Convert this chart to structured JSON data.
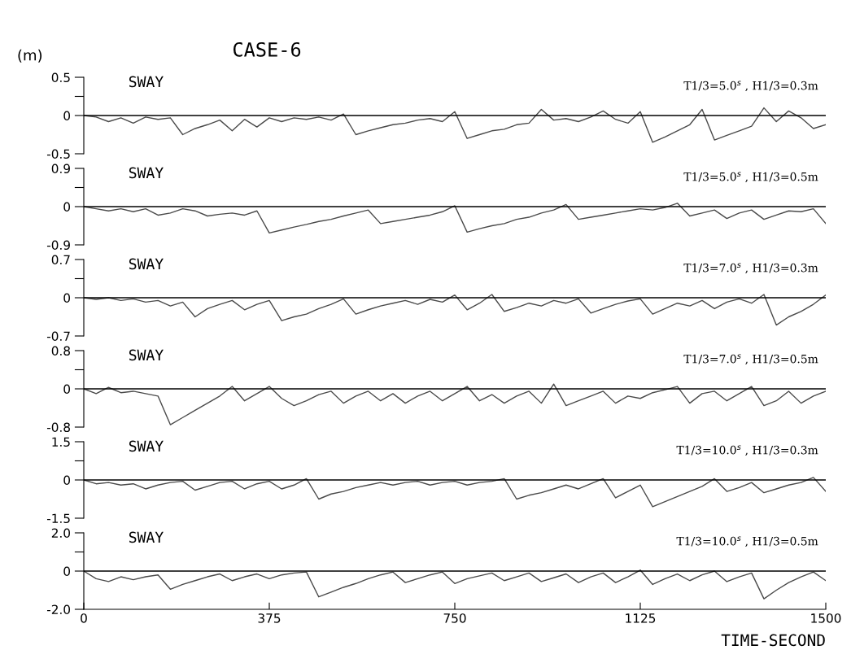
{
  "chart_data": [
    {
      "type": "line",
      "title": "SWAY",
      "ylabel": "(m)",
      "annotations": [
        "T1/3=5.0$^{s}$ , H1/3=0.3m",
        "CASE-6"
      ],
      "xlim": [
        0,
        1500
      ],
      "ylim": [
        -0.5,
        0.5
      ],
      "yticks": [
        {
          "value": -0.5,
          "label": "-0.5"
        },
        0,
        {
          "value": 0.25,
          "label": null
        },
        0.5
      ],
      "tick_labels": "y",
      "ref_lines": [
        {
          "axis": "y",
          "value": 0,
          "color": "#000000"
        }
      ],
      "series": [
        {
          "color": "#4a4a4a",
          "x": [
            0,
            25,
            50,
            75,
            100,
            125,
            150,
            175,
            200,
            225,
            250,
            275,
            300,
            325,
            350,
            375,
            400,
            425,
            450,
            475,
            500,
            525,
            550,
            575,
            600,
            625,
            650,
            675,
            700,
            725,
            750,
            775,
            800,
            825,
            850,
            875,
            900,
            925,
            950,
            975,
            1000,
            1025,
            1050,
            1075,
            1100,
            1125,
            1150,
            1175,
            1200,
            1225,
            1250,
            1275,
            1300,
            1325,
            1350,
            1375,
            1400,
            1425,
            1450,
            1475,
            1500
          ],
          "values": [
            0,
            -0.02,
            -0.08,
            -0.03,
            -0.1,
            -0.02,
            -0.05,
            -0.03,
            -0.25,
            -0.17,
            -0.12,
            -0.06,
            -0.2,
            -0.05,
            -0.15,
            -0.03,
            -0.08,
            -0.03,
            -0.05,
            -0.02,
            -0.06,
            0.02,
            -0.25,
            -0.2,
            -0.16,
            -0.12,
            -0.1,
            -0.06,
            -0.04,
            -0.08,
            0.05,
            -0.3,
            -0.25,
            -0.2,
            -0.18,
            -0.12,
            -0.1,
            0.08,
            -0.06,
            -0.04,
            -0.08,
            -0.02,
            0.06,
            -0.05,
            -0.1,
            0.05,
            -0.35,
            -0.28,
            -0.2,
            -0.12,
            0.08,
            -0.32,
            -0.26,
            -0.2,
            -0.14,
            0.1,
            -0.08,
            0.06,
            -0.03,
            -0.17,
            -0.12
          ]
        }
      ]
    },
    {
      "type": "line",
      "title": "SWAY",
      "annotations": [
        "T1/3=5.0$^{s}$ , H1/3=0.5m"
      ],
      "xlim": [
        0,
        1500
      ],
      "ylim": [
        -0.9,
        0.9
      ],
      "yticks": [
        {
          "value": -0.9,
          "label": "-0.9"
        },
        0,
        {
          "value": 0.45,
          "label": null
        },
        0.9
      ],
      "tick_labels": "y",
      "ref_lines": [
        {
          "axis": "y",
          "value": 0,
          "color": "#000000"
        }
      ],
      "series": [
        {
          "color": "#4a4a4a",
          "x": [
            0,
            25,
            50,
            75,
            100,
            125,
            150,
            175,
            200,
            225,
            250,
            275,
            300,
            325,
            350,
            375,
            400,
            425,
            450,
            475,
            500,
            525,
            550,
            575,
            600,
            625,
            650,
            675,
            700,
            725,
            750,
            775,
            800,
            825,
            850,
            875,
            900,
            925,
            950,
            975,
            1000,
            1025,
            1050,
            1075,
            1100,
            1125,
            1150,
            1175,
            1200,
            1225,
            1250,
            1275,
            1300,
            1325,
            1350,
            1375,
            1400,
            1425,
            1450,
            1475,
            1500
          ],
          "values": [
            0,
            -0.05,
            -0.1,
            -0.05,
            -0.12,
            -0.05,
            -0.2,
            -0.15,
            -0.05,
            -0.1,
            -0.22,
            -0.18,
            -0.15,
            -0.2,
            -0.1,
            -0.62,
            -0.55,
            -0.48,
            -0.42,
            -0.35,
            -0.3,
            -0.22,
            -0.15,
            -0.08,
            -0.4,
            -0.35,
            -0.3,
            -0.25,
            -0.2,
            -0.12,
            0.02,
            -0.6,
            -0.52,
            -0.45,
            -0.4,
            -0.3,
            -0.25,
            -0.15,
            -0.08,
            0.05,
            -0.3,
            -0.25,
            -0.2,
            -0.15,
            -0.1,
            -0.05,
            -0.08,
            -0.02,
            0.08,
            -0.22,
            -0.15,
            -0.08,
            -0.28,
            -0.15,
            -0.08,
            -0.3,
            -0.2,
            -0.1,
            -0.12,
            -0.05,
            -0.4
          ]
        }
      ]
    },
    {
      "type": "line",
      "title": "SWAY",
      "annotations": [
        "T1/3=7.0$^{s}$ , H1/3=0.3m"
      ],
      "xlim": [
        0,
        1500
      ],
      "ylim": [
        -0.7,
        0.7
      ],
      "yticks": [
        {
          "value": -0.7,
          "label": "-0.7"
        },
        0,
        {
          "value": 0.35,
          "label": null
        },
        0.7
      ],
      "tick_labels": "y",
      "ref_lines": [
        {
          "axis": "y",
          "value": 0,
          "color": "#000000"
        }
      ],
      "series": [
        {
          "color": "#4a4a4a",
          "x": [
            0,
            25,
            50,
            75,
            100,
            125,
            150,
            175,
            200,
            225,
            250,
            275,
            300,
            325,
            350,
            375,
            400,
            425,
            450,
            475,
            500,
            525,
            550,
            575,
            600,
            625,
            650,
            675,
            700,
            725,
            750,
            775,
            800,
            825,
            850,
            875,
            900,
            925,
            950,
            975,
            1000,
            1025,
            1050,
            1075,
            1100,
            1125,
            1150,
            1175,
            1200,
            1225,
            1250,
            1275,
            1300,
            1325,
            1350,
            1375,
            1400,
            1425,
            1450,
            1475,
            1500
          ],
          "values": [
            0,
            -0.03,
            0,
            -0.05,
            -0.02,
            -0.08,
            -0.05,
            -0.15,
            -0.08,
            -0.35,
            -0.2,
            -0.12,
            -0.05,
            -0.22,
            -0.12,
            -0.05,
            -0.42,
            -0.35,
            -0.3,
            -0.2,
            -0.12,
            -0.02,
            -0.3,
            -0.22,
            -0.15,
            -0.1,
            -0.05,
            -0.12,
            -0.03,
            -0.08,
            0.05,
            -0.22,
            -0.1,
            0.06,
            -0.25,
            -0.18,
            -0.1,
            -0.15,
            -0.05,
            -0.1,
            -0.02,
            -0.28,
            -0.2,
            -0.12,
            -0.06,
            -0.02,
            -0.3,
            -0.2,
            -0.1,
            -0.15,
            -0.05,
            -0.2,
            -0.08,
            -0.02,
            -0.1,
            0.06,
            -0.5,
            -0.35,
            -0.25,
            -0.12,
            0.05
          ]
        }
      ]
    },
    {
      "type": "line",
      "title": "SWAY",
      "annotations": [
        "T1/3=7.0$^{s}$ , H1/3=0.5m"
      ],
      "xlim": [
        0,
        1500
      ],
      "ylim": [
        -0.8,
        0.8
      ],
      "yticks": [
        {
          "value": -0.8,
          "label": "-0.8"
        },
        0,
        {
          "value": 0.4,
          "label": null
        },
        0.8
      ],
      "tick_labels": "y",
      "ref_lines": [
        {
          "axis": "y",
          "value": 0,
          "color": "#000000"
        }
      ],
      "series": [
        {
          "color": "#4a4a4a",
          "x": [
            0,
            25,
            50,
            75,
            100,
            125,
            150,
            175,
            200,
            225,
            250,
            275,
            300,
            325,
            350,
            375,
            400,
            425,
            450,
            475,
            500,
            525,
            550,
            575,
            600,
            625,
            650,
            675,
            700,
            725,
            750,
            775,
            800,
            825,
            850,
            875,
            900,
            925,
            950,
            975,
            1000,
            1025,
            1050,
            1075,
            1100,
            1125,
            1150,
            1175,
            1200,
            1225,
            1250,
            1275,
            1300,
            1325,
            1350,
            1375,
            1400,
            1425,
            1450,
            1475,
            1500
          ],
          "values": [
            0,
            -0.1,
            0.03,
            -0.08,
            -0.05,
            -0.1,
            -0.15,
            -0.75,
            -0.6,
            -0.45,
            -0.3,
            -0.15,
            0.05,
            -0.25,
            -0.1,
            0.05,
            -0.2,
            -0.35,
            -0.25,
            -0.12,
            -0.05,
            -0.3,
            -0.15,
            -0.05,
            -0.25,
            -0.1,
            -0.3,
            -0.15,
            -0.05,
            -0.25,
            -0.1,
            0.05,
            -0.25,
            -0.12,
            -0.3,
            -0.15,
            -0.05,
            -0.3,
            0.1,
            -0.35,
            -0.25,
            -0.15,
            -0.05,
            -0.3,
            -0.15,
            -0.2,
            -0.08,
            -0.02,
            0.05,
            -0.3,
            -0.1,
            -0.05,
            -0.25,
            -0.1,
            0.05,
            -0.35,
            -0.25,
            -0.05,
            -0.3,
            -0.15,
            -0.05
          ]
        }
      ]
    },
    {
      "type": "line",
      "title": "SWAY",
      "annotations": [
        "T1/3=10.0$^{s}$ , H1/3=0.3m"
      ],
      "xlim": [
        0,
        1500
      ],
      "ylim": [
        -1.5,
        1.5
      ],
      "yticks": [
        {
          "value": -1.5,
          "label": "-1.5"
        },
        0,
        {
          "value": 0.75,
          "label": null
        },
        1.5
      ],
      "tick_labels": "y",
      "ref_lines": [
        {
          "axis": "y",
          "value": 0,
          "color": "#000000"
        }
      ],
      "series": [
        {
          "color": "#4a4a4a",
          "x": [
            0,
            25,
            50,
            75,
            100,
            125,
            150,
            175,
            200,
            225,
            250,
            275,
            300,
            325,
            350,
            375,
            400,
            425,
            450,
            475,
            500,
            525,
            550,
            575,
            600,
            625,
            650,
            675,
            700,
            725,
            750,
            775,
            800,
            825,
            850,
            875,
            900,
            925,
            950,
            975,
            1000,
            1025,
            1050,
            1075,
            1100,
            1125,
            1150,
            1175,
            1200,
            1225,
            1250,
            1275,
            1300,
            1325,
            1350,
            1375,
            1400,
            1425,
            1450,
            1475,
            1500
          ],
          "values": [
            0,
            -0.15,
            -0.1,
            -0.2,
            -0.15,
            -0.35,
            -0.2,
            -0.1,
            -0.05,
            -0.4,
            -0.25,
            -0.1,
            -0.05,
            -0.35,
            -0.15,
            -0.05,
            -0.35,
            -0.2,
            0.05,
            -0.75,
            -0.55,
            -0.45,
            -0.3,
            -0.2,
            -0.1,
            -0.2,
            -0.1,
            -0.05,
            -0.2,
            -0.1,
            -0.05,
            -0.2,
            -0.1,
            -0.05,
            0.05,
            -0.75,
            -0.6,
            -0.5,
            -0.35,
            -0.2,
            -0.35,
            -0.15,
            0.05,
            -0.7,
            -0.45,
            -0.2,
            -1.05,
            -0.85,
            -0.65,
            -0.45,
            -0.25,
            0.05,
            -0.45,
            -0.3,
            -0.1,
            -0.5,
            -0.35,
            -0.2,
            -0.1,
            0.1,
            -0.45
          ]
        }
      ]
    },
    {
      "type": "line",
      "title": "SWAY",
      "xlabel": "TIME-SECOND",
      "annotations": [
        "T1/3=10.0$^{s}$ , H1/3=0.5m"
      ],
      "xlim": [
        0,
        1500
      ],
      "xticks": [
        0,
        375,
        750,
        1125,
        1500
      ],
      "ylim": [
        -2.0,
        2.0
      ],
      "yticks": [
        {
          "value": -2.0,
          "label": "-2.0"
        },
        0,
        {
          "value": 1.0,
          "label": null
        },
        {
          "value": 2.0,
          "label": "2.0"
        }
      ],
      "ref_lines": [
        {
          "axis": "y",
          "value": 0,
          "color": "#000000"
        }
      ],
      "series": [
        {
          "color": "#4a4a4a",
          "x": [
            0,
            25,
            50,
            75,
            100,
            125,
            150,
            175,
            200,
            225,
            250,
            275,
            300,
            325,
            350,
            375,
            400,
            425,
            450,
            475,
            500,
            525,
            550,
            575,
            600,
            625,
            650,
            675,
            700,
            725,
            750,
            775,
            800,
            825,
            850,
            875,
            900,
            925,
            950,
            975,
            1000,
            1025,
            1050,
            1075,
            1100,
            1125,
            1150,
            1175,
            1200,
            1225,
            1250,
            1275,
            1300,
            1325,
            1350,
            1375,
            1400,
            1425,
            1450,
            1475,
            1500
          ],
          "values": [
            0,
            -0.4,
            -0.55,
            -0.3,
            -0.45,
            -0.3,
            -0.2,
            -0.95,
            -0.7,
            -0.5,
            -0.3,
            -0.15,
            -0.5,
            -0.3,
            -0.15,
            -0.4,
            -0.2,
            -0.1,
            -0.05,
            -1.35,
            -1.1,
            -0.85,
            -0.65,
            -0.4,
            -0.2,
            -0.05,
            -0.6,
            -0.4,
            -0.2,
            -0.05,
            -0.65,
            -0.4,
            -0.25,
            -0.1,
            -0.5,
            -0.3,
            -0.1,
            -0.55,
            -0.35,
            -0.15,
            -0.6,
            -0.3,
            -0.1,
            -0.6,
            -0.3,
            0.05,
            -0.7,
            -0.4,
            -0.15,
            -0.5,
            -0.2,
            0,
            -0.55,
            -0.3,
            -0.1,
            -1.45,
            -1.0,
            -0.6,
            -0.3,
            -0.05,
            -0.5
          ]
        }
      ]
    }
  ]
}
